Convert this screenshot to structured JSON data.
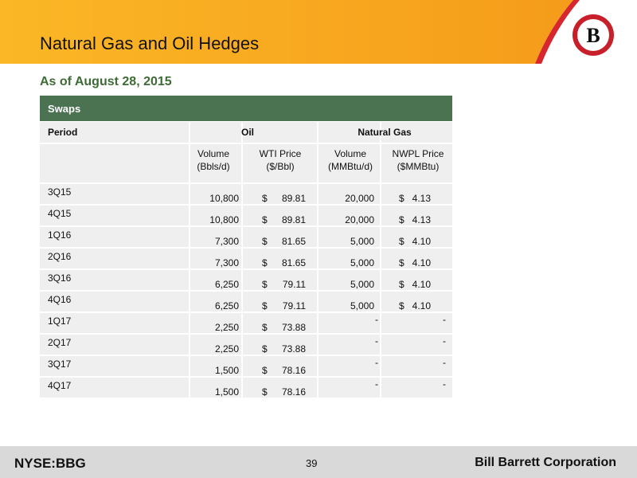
{
  "header": {
    "title": "Natural Gas and Oil Hedges",
    "logo": "B"
  },
  "subtitle": "As of August 28, 2015",
  "table": {
    "section": "Swaps",
    "groups": {
      "period": "Period",
      "oil": "Oil",
      "gas": "Natural Gas"
    },
    "columns": [
      [
        "Volume",
        "(Bbls/d)"
      ],
      [
        "WTI Price",
        "($/Bbl)"
      ],
      [
        "Volume",
        "(MMBtu/d)"
      ],
      [
        "NWPL Price",
        "($MMBtu)"
      ]
    ],
    "rows": [
      {
        "period": "3Q15",
        "oil_volume": "10,800",
        "oil_dollar": "$",
        "oil_price": "89.81",
        "gas_volume": "20,000",
        "gas_dollar": "$",
        "gas_price": "4.13"
      },
      {
        "period": "4Q15",
        "oil_volume": "10,800",
        "oil_dollar": "$",
        "oil_price": "89.81",
        "gas_volume": "20,000",
        "gas_dollar": "$",
        "gas_price": "4.13"
      },
      {
        "period": "1Q16",
        "oil_volume": "7,300",
        "oil_dollar": "$",
        "oil_price": "81.65",
        "gas_volume": "5,000",
        "gas_dollar": "$",
        "gas_price": "4.10"
      },
      {
        "period": "2Q16",
        "oil_volume": "7,300",
        "oil_dollar": "$",
        "oil_price": "81.65",
        "gas_volume": "5,000",
        "gas_dollar": "$",
        "gas_price": "4.10"
      },
      {
        "period": "3Q16",
        "oil_volume": "6,250",
        "oil_dollar": "$",
        "oil_price": "79.11",
        "gas_volume": "5,000",
        "gas_dollar": "$",
        "gas_price": "4.10"
      },
      {
        "period": "4Q16",
        "oil_volume": "6,250",
        "oil_dollar": "$",
        "oil_price": "79.11",
        "gas_volume": "5,000",
        "gas_dollar": "$",
        "gas_price": "4.10"
      },
      {
        "period": "1Q17",
        "oil_volume": "2,250",
        "oil_dollar": "$",
        "oil_price": "73.88",
        "gas_volume": "-",
        "gas_price": "-"
      },
      {
        "period": "2Q17",
        "oil_volume": "2,250",
        "oil_dollar": "$",
        "oil_price": "73.88",
        "gas_volume": "-",
        "gas_price": "-"
      },
      {
        "period": "3Q17",
        "oil_volume": "1,500",
        "oil_dollar": "$",
        "oil_price": "78.16",
        "gas_volume": "-",
        "gas_price": "-"
      },
      {
        "period": "4Q17",
        "oil_volume": "1,500",
        "oil_dollar": "$",
        "oil_price": "78.16",
        "gas_volume": "-",
        "gas_price": "-"
      }
    ]
  },
  "footer": {
    "ticker": "NYSE:BBG",
    "page": "39",
    "company": "Bill Barrett Corporation"
  }
}
